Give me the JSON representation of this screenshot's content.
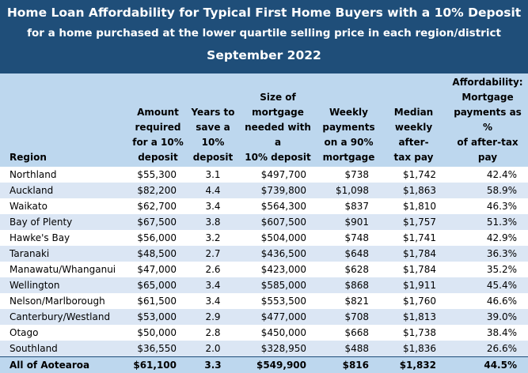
{
  "title": "Home Loan Affordability for Typical First Home Buyers with a 10% Deposit",
  "subtitle": "for a home purchased at the lower quartile selling price in each region/district",
  "period": "September 2022",
  "headers": [
    [
      "Region"
    ],
    [
      "Amount",
      "required",
      "for a 10%",
      "deposit"
    ],
    [
      "Years to",
      "save a",
      "10%",
      "deposit"
    ],
    [
      "Size of",
      "mortgage",
      "needed with a",
      "10% deposit"
    ],
    [
      "Weekly",
      "payments",
      "on a 90%",
      "mortgage"
    ],
    [
      "Median",
      "weekly after-",
      "tax pay"
    ],
    [
      "Affordability:",
      "Mortgage",
      "payments as %",
      "of after-tax pay"
    ]
  ],
  "rows": [
    [
      "Northland",
      "$55,300",
      "3.1",
      "$497,700",
      "$738",
      "$1,742",
      "42.4%"
    ],
    [
      "Auckland",
      "$82,200",
      "4.4",
      "$739,800",
      "$1,098",
      "$1,863",
      "58.9%"
    ],
    [
      "Waikato",
      "$62,700",
      "3.4",
      "$564,300",
      "$837",
      "$1,810",
      "46.3%"
    ],
    [
      "Bay of Plenty",
      "$67,500",
      "3.8",
      "$607,500",
      "$901",
      "$1,757",
      "51.3%"
    ],
    [
      "Hawke's Bay",
      "$56,000",
      "3.2",
      "$504,000",
      "$748",
      "$1,741",
      "42.9%"
    ],
    [
      "Taranaki",
      "$48,500",
      "2.7",
      "$436,500",
      "$648",
      "$1,784",
      "36.3%"
    ],
    [
      "Manawatu/Whanganui",
      "$47,000",
      "2.6",
      "$423,000",
      "$628",
      "$1,784",
      "35.2%"
    ],
    [
      "Wellington",
      "$65,000",
      "3.4",
      "$585,000",
      "$868",
      "$1,911",
      "45.4%"
    ],
    [
      "Nelson/Marlborough",
      "$61,500",
      "3.4",
      "$553,500",
      "$821",
      "$1,760",
      "46.6%"
    ],
    [
      "Canterbury/Westland",
      "$53,000",
      "2.9",
      "$477,000",
      "$708",
      "$1,813",
      "39.0%"
    ],
    [
      "Otago",
      "$50,000",
      "2.8",
      "$450,000",
      "$668",
      "$1,738",
      "38.4%"
    ],
    [
      "Southland",
      "$36,550",
      "2.0",
      "$328,950",
      "$488",
      "$1,836",
      "26.6%"
    ]
  ],
  "total": [
    "All of Aotearoa",
    "$61,100",
    "3.3",
    "$549,900",
    "$816",
    "$1,832",
    "44.5%"
  ],
  "colors": {
    "banner": "#1f4e79",
    "header": "#bdd7ee",
    "band": "#dbe6f4"
  }
}
